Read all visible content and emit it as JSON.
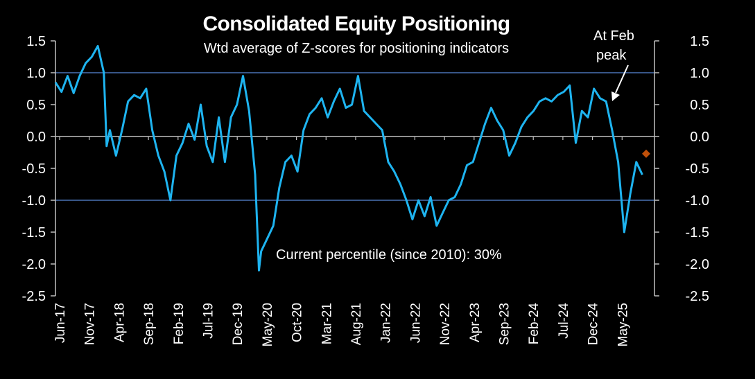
{
  "chart_data": {
    "type": "line",
    "title": "Consolidated Equity Positioning",
    "subtitle": "Wtd average of Z-scores for positioning indicators",
    "ylim": [
      -2.5,
      1.5
    ],
    "y_ticks": [
      "1.5",
      "1.0",
      "0.5",
      "0.0",
      "-0.5",
      "-1.0",
      "-1.5",
      "-2.0",
      "-2.5"
    ],
    "y_tick_values": [
      1.5,
      1.0,
      0.5,
      0.0,
      -0.5,
      -1.0,
      -1.5,
      -2.0,
      -2.5
    ],
    "reference_lines": [
      1.0,
      -1.0
    ],
    "x_ticks": [
      "Jun-17",
      "Nov-17",
      "Apr-18",
      "Sep-18",
      "Feb-19",
      "Jul-19",
      "Dec-19",
      "May-20",
      "Oct-20",
      "Mar-21",
      "Aug-21",
      "Jan-22",
      "Jun-22",
      "Nov-22",
      "Apr-23",
      "Sep-23",
      "Feb-24",
      "Jul-24",
      "Dec-24",
      "May-25"
    ],
    "series": [
      {
        "color": "#1EB4F0",
        "points": [
          [
            "2017-06",
            0.85
          ],
          [
            "2017-07",
            0.7
          ],
          [
            "2017-08",
            0.95
          ],
          [
            "2017-09",
            0.68
          ],
          [
            "2017-10",
            0.95
          ],
          [
            "2017-11",
            1.15
          ],
          [
            "2017-12",
            1.25
          ],
          [
            "2018-01",
            1.42
          ],
          [
            "2018-02",
            1.0
          ],
          [
            "2018-02-15",
            -0.15
          ],
          [
            "2018-03",
            0.1
          ],
          [
            "2018-04",
            -0.3
          ],
          [
            "2018-05",
            0.1
          ],
          [
            "2018-06",
            0.55
          ],
          [
            "2018-07",
            0.65
          ],
          [
            "2018-08",
            0.6
          ],
          [
            "2018-09",
            0.75
          ],
          [
            "2018-10",
            0.1
          ],
          [
            "2018-11",
            -0.3
          ],
          [
            "2018-12",
            -0.55
          ],
          [
            "2019-01",
            -1.0
          ],
          [
            "2019-02",
            -0.3
          ],
          [
            "2019-03",
            -0.1
          ],
          [
            "2019-04",
            0.2
          ],
          [
            "2019-05",
            -0.05
          ],
          [
            "2019-06",
            0.5
          ],
          [
            "2019-07",
            -0.15
          ],
          [
            "2019-08",
            -0.4
          ],
          [
            "2019-09",
            0.3
          ],
          [
            "2019-10",
            -0.4
          ],
          [
            "2019-11",
            0.3
          ],
          [
            "2019-12",
            0.5
          ],
          [
            "2020-01",
            0.95
          ],
          [
            "2020-02",
            0.4
          ],
          [
            "2020-03",
            -0.6
          ],
          [
            "2020-03-20",
            -2.1
          ],
          [
            "2020-04",
            -1.8
          ],
          [
            "2020-05",
            -1.6
          ],
          [
            "2020-06",
            -1.4
          ],
          [
            "2020-07",
            -0.8
          ],
          [
            "2020-08",
            -0.4
          ],
          [
            "2020-09",
            -0.3
          ],
          [
            "2020-10",
            -0.55
          ],
          [
            "2020-11",
            0.1
          ],
          [
            "2020-12",
            0.35
          ],
          [
            "2021-01",
            0.45
          ],
          [
            "2021-02",
            0.6
          ],
          [
            "2021-03",
            0.3
          ],
          [
            "2021-04",
            0.55
          ],
          [
            "2021-05",
            0.75
          ],
          [
            "2021-06",
            0.45
          ],
          [
            "2021-07",
            0.5
          ],
          [
            "2021-08",
            0.95
          ],
          [
            "2021-09",
            0.4
          ],
          [
            "2021-10",
            0.3
          ],
          [
            "2021-11",
            0.2
          ],
          [
            "2021-12",
            0.1
          ],
          [
            "2022-01",
            -0.4
          ],
          [
            "2022-02",
            -0.55
          ],
          [
            "2022-03",
            -0.75
          ],
          [
            "2022-04",
            -1.0
          ],
          [
            "2022-05",
            -1.3
          ],
          [
            "2022-06",
            -1.0
          ],
          [
            "2022-07",
            -1.25
          ],
          [
            "2022-08",
            -0.95
          ],
          [
            "2022-09",
            -1.4
          ],
          [
            "2022-10",
            -1.2
          ],
          [
            "2022-11",
            -1.0
          ],
          [
            "2022-12",
            -0.95
          ],
          [
            "2023-01",
            -0.75
          ],
          [
            "2023-02",
            -0.45
          ],
          [
            "2023-03",
            -0.4
          ],
          [
            "2023-04",
            -0.1
          ],
          [
            "2023-05",
            0.2
          ],
          [
            "2023-06",
            0.45
          ],
          [
            "2023-07",
            0.25
          ],
          [
            "2023-08",
            0.1
          ],
          [
            "2023-09",
            -0.3
          ],
          [
            "2023-10",
            -0.1
          ],
          [
            "2023-11",
            0.15
          ],
          [
            "2023-12",
            0.3
          ],
          [
            "2024-01",
            0.4
          ],
          [
            "2024-02",
            0.55
          ],
          [
            "2024-03",
            0.6
          ],
          [
            "2024-04",
            0.55
          ],
          [
            "2024-05",
            0.65
          ],
          [
            "2024-06",
            0.7
          ],
          [
            "2024-07",
            0.8
          ],
          [
            "2024-08",
            -0.1
          ],
          [
            "2024-09",
            0.4
          ],
          [
            "2024-10",
            0.3
          ],
          [
            "2024-11",
            0.75
          ],
          [
            "2024-12",
            0.6
          ],
          [
            "2025-01",
            0.55
          ],
          [
            "2025-02",
            0.1
          ],
          [
            "2025-03",
            -0.4
          ],
          [
            "2025-04",
            -1.5
          ],
          [
            "2025-05",
            -0.9
          ],
          [
            "2025-06",
            -0.4
          ],
          [
            "2025-07",
            -0.6
          ]
        ]
      }
    ],
    "current_point": {
      "x": "2025-07-20",
      "y": -0.27,
      "color": "#C0500A"
    },
    "annotations": {
      "feb_peak_line1": "At Feb",
      "feb_peak_line2": "peak",
      "percentile": "Current percentile (since 2010): 30%"
    },
    "reference_line_color": "#4A73B5",
    "axis_color": "#BFBFBF",
    "background": "#000000"
  }
}
